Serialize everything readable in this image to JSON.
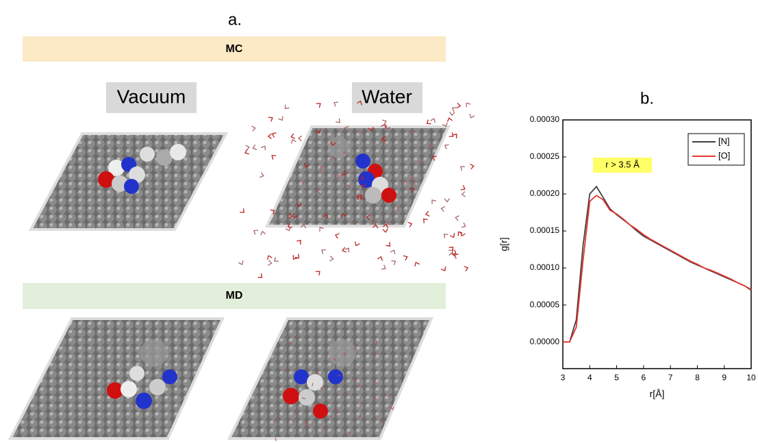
{
  "panel_a": {
    "label": "a.",
    "mc_header": "MC",
    "vacuum_label": "Vacuum",
    "water_label": "Water",
    "md_header": "MD"
  },
  "chart_data": {
    "type": "line",
    "title": "b.",
    "x_label": "r[Å]",
    "y_label": "g[r]",
    "annotation": "r > 3.5 Å",
    "x": [
      3,
      3.25,
      3.5,
      3.75,
      4,
      4.25,
      4.5,
      4.75,
      5,
      5.25,
      5.5,
      5.75,
      6,
      6.25,
      6.5,
      6.75,
      7,
      7.25,
      7.5,
      7.75,
      8,
      8.25,
      8.5,
      8.75,
      9,
      9.25,
      9.5,
      9.75,
      10
    ],
    "series": [
      {
        "name": "[N]",
        "color": "#404040",
        "values": [
          0,
          0,
          3e-05,
          0.00013,
          0.0002,
          0.00021,
          0.000195,
          0.00018,
          0.000172,
          0.000165,
          0.000158,
          0.00015,
          0.000143,
          0.000138,
          0.000133,
          0.000128,
          0.000123,
          0.000118,
          0.000113,
          0.000108,
          0.000104,
          0.0001,
          9.6e-05,
          9.2e-05,
          8.8e-05,
          8.4e-05,
          8e-05,
          7.6e-05,
          7e-05
        ]
      },
      {
        "name": "[O]",
        "color": "#e8332e",
        "values": [
          0,
          0,
          2e-05,
          0.00011,
          0.00019,
          0.000198,
          0.000192,
          0.000178,
          0.000173,
          0.000166,
          0.000158,
          0.000152,
          0.000145,
          0.000139,
          0.000134,
          0.000129,
          0.000124,
          0.000119,
          0.000114,
          0.000109,
          0.000105,
          0.0001,
          9.7e-05,
          9.3e-05,
          8.9e-05,
          8.5e-05,
          8e-05,
          7.6e-05,
          7.1e-05
        ]
      }
    ],
    "xlim": [
      3,
      10
    ],
    "ylim": [
      -3.6e-05,
      0.0003
    ],
    "xticks": [
      3,
      4,
      5,
      6,
      7,
      8,
      9,
      10
    ],
    "yticks": [
      {
        "value": 0,
        "label": "0.00000"
      },
      {
        "value": 5e-05,
        "label": "0.00005"
      },
      {
        "value": 0.0001,
        "label": "0.00010"
      },
      {
        "value": 0.00015,
        "label": "0.00015"
      },
      {
        "value": 0.0002,
        "label": "0.00020"
      },
      {
        "value": 0.00025,
        "label": "0.00025"
      },
      {
        "value": 0.0003,
        "label": "0.00030"
      }
    ],
    "legend": "top-right"
  }
}
